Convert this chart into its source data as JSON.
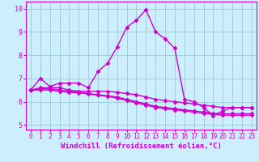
{
  "background_color": "#cceeff",
  "grid_color": "#99cccc",
  "line_color": "#cc00cc",
  "marker": "D",
  "marker_size": 2.5,
  "line_width": 1.0,
  "xlabel": "Windchill (Refroidissement éolien,°C)",
  "xlabel_fontsize": 6.5,
  "tick_fontsize": 5.5,
  "xlim": [
    -0.5,
    23.5
  ],
  "ylim": [
    4.8,
    10.3
  ],
  "yticks": [
    5,
    6,
    7,
    8,
    9,
    10
  ],
  "xticks": [
    0,
    1,
    2,
    3,
    4,
    5,
    6,
    7,
    8,
    9,
    10,
    11,
    12,
    13,
    14,
    15,
    16,
    17,
    18,
    19,
    20,
    21,
    22,
    23
  ],
  "curves": [
    [
      6.5,
      7.0,
      6.65,
      6.8,
      6.8,
      6.8,
      6.6,
      7.3,
      7.65,
      8.35,
      9.2,
      9.5,
      9.95,
      9.0,
      8.7,
      8.3,
      6.1,
      6.0,
      5.75,
      5.4,
      5.6,
      5.75,
      5.75,
      5.75
    ],
    [
      6.5,
      6.6,
      6.6,
      6.6,
      6.5,
      6.45,
      6.45,
      6.45,
      6.45,
      6.4,
      6.35,
      6.3,
      6.2,
      6.1,
      6.05,
      6.0,
      5.95,
      5.9,
      5.85,
      5.8,
      5.75,
      5.75,
      5.75,
      5.75
    ],
    [
      6.5,
      6.55,
      6.55,
      6.5,
      6.45,
      6.4,
      6.35,
      6.3,
      6.25,
      6.2,
      6.1,
      6.0,
      5.9,
      5.8,
      5.75,
      5.7,
      5.65,
      5.6,
      5.55,
      5.5,
      5.48,
      5.48,
      5.48,
      5.48
    ],
    [
      6.5,
      6.5,
      6.5,
      6.45,
      6.4,
      6.38,
      6.33,
      6.28,
      6.23,
      6.15,
      6.05,
      5.95,
      5.85,
      5.75,
      5.7,
      5.65,
      5.6,
      5.55,
      5.5,
      5.45,
      5.42,
      5.42,
      5.42,
      5.42
    ]
  ]
}
